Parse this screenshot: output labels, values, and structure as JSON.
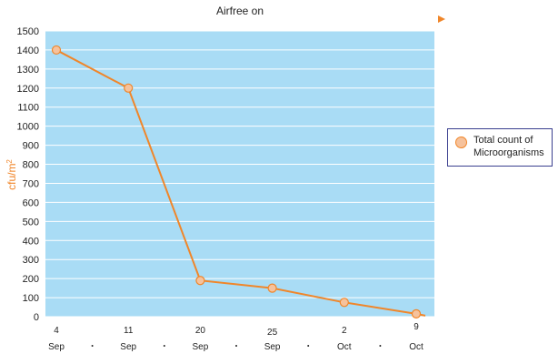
{
  "chart_data": {
    "type": "line",
    "title": "",
    "xlabel": "",
    "ylabel": "cfu/m",
    "ylabel_superscript": "2",
    "ylim": [
      0,
      1500
    ],
    "yticks": [
      0,
      100,
      200,
      300,
      400,
      500,
      600,
      700,
      800,
      900,
      1000,
      1100,
      1200,
      1300,
      1400,
      1500
    ],
    "grid": true,
    "legend_position": "right",
    "categories": [
      {
        "day": "4",
        "month": "Sep"
      },
      {
        "day": "11",
        "month": "Sep"
      },
      {
        "day": "20",
        "month": "Sep"
      },
      {
        "day": "25",
        "month": "Sep"
      },
      {
        "day": "2",
        "month": "Oct"
      },
      {
        "day": "9",
        "month": "Oct"
      }
    ],
    "series": [
      {
        "name": "Total count of Microorganisms",
        "values": [
          1400,
          1200,
          190,
          150,
          75,
          15
        ]
      }
    ],
    "annotation": "Airfree on",
    "colors": {
      "plot_bg": "#a9dcf5",
      "grid": "#ffffff",
      "line": "#f0862a",
      "marker_fill": "#f6c29c",
      "arrow": "#f0862a",
      "arrow_start": "#29a38a",
      "ylabel": "#f0862a",
      "legend_border": "#3a3f8f"
    }
  }
}
